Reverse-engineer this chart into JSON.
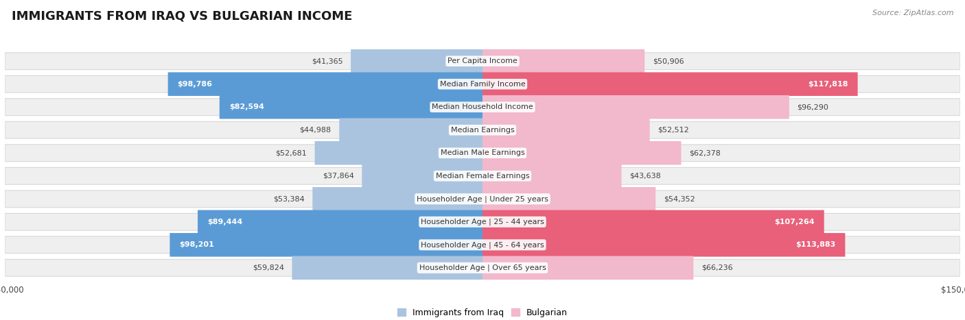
{
  "title": "IMMIGRANTS FROM IRAQ VS BULGARIAN INCOME",
  "source": "Source: ZipAtlas.com",
  "categories": [
    "Per Capita Income",
    "Median Family Income",
    "Median Household Income",
    "Median Earnings",
    "Median Male Earnings",
    "Median Female Earnings",
    "Householder Age | Under 25 years",
    "Householder Age | 25 - 44 years",
    "Householder Age | 45 - 64 years",
    "Householder Age | Over 65 years"
  ],
  "iraq_values": [
    41365,
    98786,
    82594,
    44988,
    52681,
    37864,
    53384,
    89444,
    98201,
    59824
  ],
  "bulgarian_values": [
    50906,
    117818,
    96290,
    52512,
    62378,
    43638,
    54352,
    107264,
    113883,
    66236
  ],
  "iraq_color_light": "#aac4e0",
  "iraq_color_dark": "#5b9bd5",
  "bulgarian_color_light": "#f2b8cb",
  "bulgarian_color_dark": "#e8607a",
  "iraq_label": "Immigrants from Iraq",
  "bulgarian_label": "Bulgarian",
  "max_value": 150000,
  "background_color": "#ffffff",
  "row_bg_color": "#efefef",
  "row_border_color": "#d8d8d8",
  "title_fontsize": 13,
  "value_fontsize": 8,
  "cat_fontsize": 8,
  "source_fontsize": 8
}
